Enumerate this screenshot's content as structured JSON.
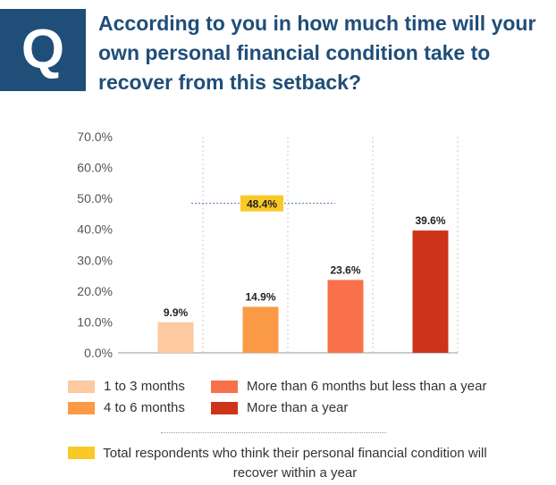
{
  "question": {
    "badge": "Q",
    "text": "According to you in how much time will your own personal financial condition take to recover from this setback?"
  },
  "chart_data": {
    "type": "bar",
    "categories": [
      "1 to 3 months",
      "4 to 6 months",
      "More than 6 months but less than a year",
      "More than a year"
    ],
    "values": [
      9.9,
      14.9,
      23.6,
      39.6
    ],
    "value_labels": [
      "9.9%",
      "14.9%",
      "23.6%",
      "39.6%"
    ],
    "colors": [
      "#fcc9a0",
      "#fb9a46",
      "#f8714a",
      "#cc3318"
    ],
    "ylim": [
      0,
      70
    ],
    "yticks": [
      "0.0%",
      "10.0%",
      "20.0%",
      "30.0%",
      "40.0%",
      "50.0%",
      "60.0%",
      "70.0%"
    ],
    "grid": "vertical-dotted",
    "annotation": {
      "label": "48.4%",
      "value": 48.4,
      "color": "#f9c928"
    },
    "legend": {
      "items": [
        {
          "label": "1 to 3 months",
          "color": "#fcc9a0"
        },
        {
          "label": "4 to 6 months",
          "color": "#fb9a46"
        },
        {
          "label": "More than 6 months but less than a year",
          "color": "#f8714a"
        },
        {
          "label": "More than a year",
          "color": "#cc3318"
        }
      ],
      "placement": "bottom"
    }
  },
  "note": {
    "text": "Total respondents who think their personal financial condition will recover within a year",
    "color": "#f9c928"
  }
}
